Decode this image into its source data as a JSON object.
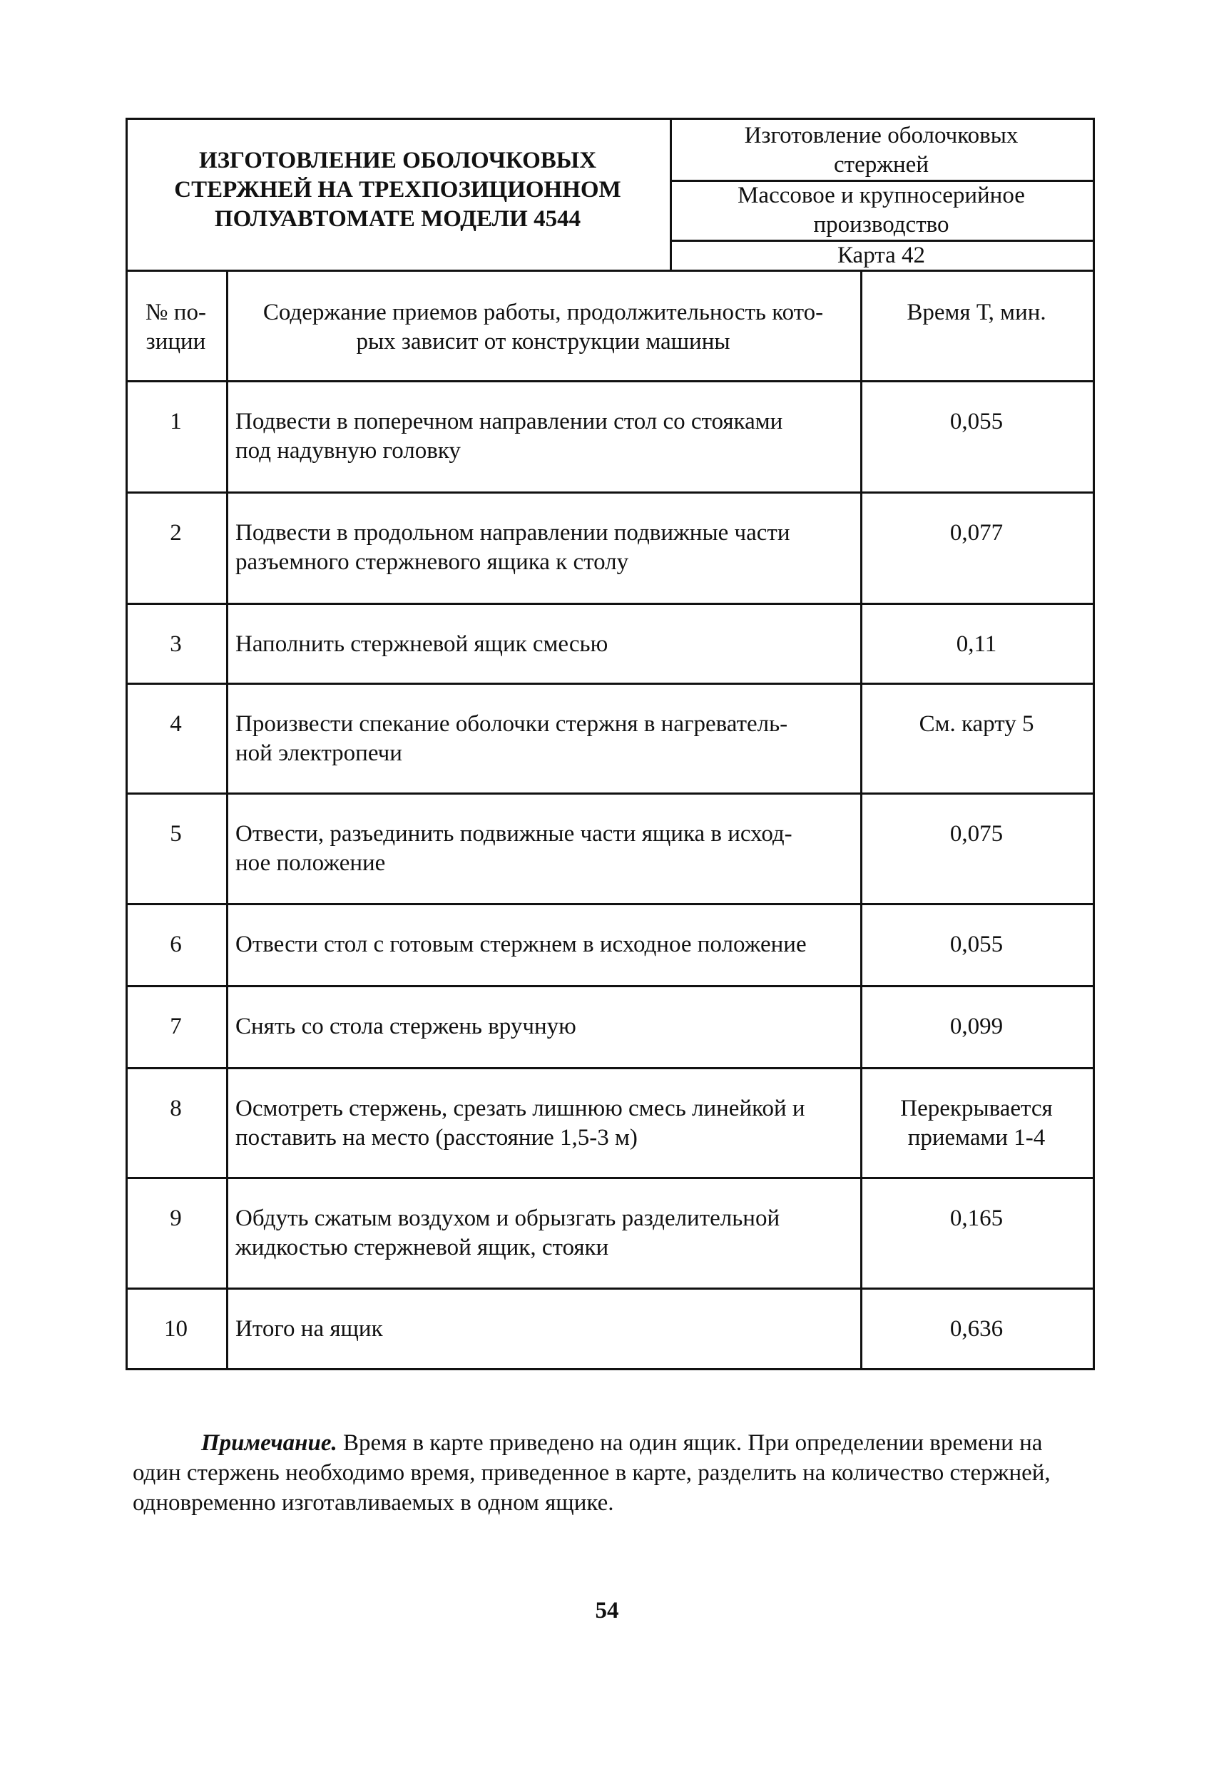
{
  "header": {
    "title": "ИЗГОТОВЛЕНИЕ ОБОЛОЧКОВЫХ СТЕРЖНЕЙ НА ТРЕХПОЗИЦИОННОМ ПОЛУАВТОМАТЕ МОДЕЛИ 4544",
    "title_lines": [
      "ИЗГОТОВЛЕНИЕ ОБОЛОЧКОВЫХ",
      "СТЕРЖНЕЙ НА ТРЕХПОЗИЦИОННОМ",
      "ПОЛУАВТОМАТЕ МОДЕЛИ 4544"
    ],
    "operation": [
      "Изготовление оболочковых",
      "стержней"
    ],
    "production": [
      "Массовое и крупносерийное",
      "производство"
    ],
    "card": "Карта 42"
  },
  "columns": {
    "num": [
      "№ по-",
      "зиции"
    ],
    "content": [
      "Содержание приемов работы, продолжительность кото-",
      "рых зависит от конструкции машины"
    ],
    "time": "Время Т, мин."
  },
  "rows": [
    {
      "num": "1",
      "text": [
        "Подвести в поперечном направлении стол со стояками",
        "под надувную головку"
      ],
      "time": [
        "0,055"
      ]
    },
    {
      "num": "2",
      "text": [
        "Подвести в продольном направлении подвижные части",
        "разъемного стержневого ящика к столу"
      ],
      "time": [
        "0,077"
      ]
    },
    {
      "num": "3",
      "text": [
        "Наполнить стержневой ящик смесью"
      ],
      "time": [
        "0,11"
      ]
    },
    {
      "num": "4",
      "text": [
        "Произвести спекание оболочки стержня в нагреватель-",
        "ной электропечи"
      ],
      "time": [
        "См. карту 5"
      ]
    },
    {
      "num": "5",
      "text": [
        "Отвести, разъединить подвижные части ящика в исход-",
        "ное положение"
      ],
      "time": [
        "0,075"
      ]
    },
    {
      "num": "6",
      "text": [
        "Отвести стол с готовым стержнем в исходное положение"
      ],
      "time": [
        "0,055"
      ]
    },
    {
      "num": "7",
      "text": [
        "Снять со стола стержень вручную"
      ],
      "time": [
        "0,099"
      ]
    },
    {
      "num": "8",
      "text": [
        "Осмотреть стержень, срезать лишнюю смесь линейкой и",
        "поставить на место (расстояние 1,5-3 м)"
      ],
      "time": [
        "Перекрывается",
        "приемами 1-4"
      ]
    },
    {
      "num": "9",
      "text": [
        "Обдуть сжатым воздухом и обрызгать разделительной",
        "жидкостью стержневой ящик, стояки"
      ],
      "time": [
        "0,165"
      ]
    },
    {
      "num": "10",
      "text": [
        "Итого на ящик"
      ],
      "time": [
        "0,636"
      ]
    }
  ],
  "note": {
    "label": "Примечание.",
    "text": " Время в карте приведено на один ящик. При определении времени на один стержень необходимо время, приведенное в карте, разделить на количество стержней, одновременно изготавливаемых в одном ящике."
  },
  "page_number": "54"
}
